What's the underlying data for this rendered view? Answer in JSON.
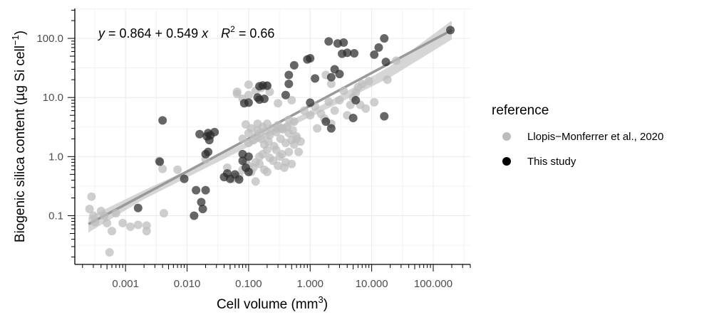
{
  "chart_data": {
    "type": "scatter",
    "x_scale": "log10",
    "y_scale": "log10",
    "xlabel": {
      "base": "Cell volume (mm",
      "sup": "3",
      "close": ")"
    },
    "ylabel": {
      "base": "Biogenic silica content (µg Si cell",
      "sup": "−1",
      "close": ")"
    },
    "xlim": [
      0.00015,
      400
    ],
    "ylim": [
      0.015,
      320
    ],
    "x_ticks": [
      0.001,
      0.01,
      0.1,
      1,
      10,
      100
    ],
    "x_tick_labels": [
      "0.001",
      "0.010",
      "0.100",
      "1.000",
      "10.000",
      "100.000"
    ],
    "y_ticks": [
      0.1,
      1,
      10,
      100
    ],
    "y_tick_labels": [
      "0.1",
      "1.0",
      "10.0",
      "100.0"
    ],
    "grid": true,
    "minor_ticks": true,
    "annotation": {
      "eq_y": "y",
      "eq_mid": " = 0.864 + 0.549 ",
      "eq_x": "x",
      "r_label": "R",
      "r_sup": "2",
      "r_value": " = 0.66"
    },
    "fit": {
      "x_range": [
        0.00025,
        200
      ],
      "line_color": "#999999",
      "band_color": "#c8c8c8",
      "points_low": [
        [
          0.00025,
          0.072
        ],
        [
          200,
          138
        ]
      ],
      "band_upper": [
        [
          0.00025,
          0.094
        ],
        [
          0.002,
          0.27
        ],
        [
          0.02,
          0.82
        ],
        [
          0.2,
          2.6
        ],
        [
          2,
          8.5
        ],
        [
          20,
          34
        ],
        [
          200,
          200
        ]
      ],
      "band_lower": [
        [
          0.00025,
          0.052
        ],
        [
          0.002,
          0.19
        ],
        [
          0.02,
          0.64
        ],
        [
          0.2,
          2.1
        ],
        [
          2,
          6.6
        ],
        [
          20,
          22
        ],
        [
          200,
          96
        ]
      ]
    },
    "legend": {
      "title": "reference",
      "position": "right",
      "entries": [
        "Llopis−Monferrer et al., 2020",
        "This study"
      ]
    },
    "series": [
      {
        "name": "Llopis−Monferrer et al., 2020",
        "color": "#bdbdbd",
        "points": [
          [
            0.00026,
            0.13
          ],
          [
            0.00028,
            0.21
          ],
          [
            0.0003,
            0.1
          ],
          [
            0.00032,
            0.078
          ],
          [
            0.0004,
            0.12
          ],
          [
            0.00045,
            0.1
          ],
          [
            0.0005,
            0.075
          ],
          [
            0.00055,
            0.024
          ],
          [
            0.0006,
            0.055
          ],
          [
            0.0007,
            0.11
          ],
          [
            0.0009,
            0.075
          ],
          [
            0.0012,
            0.065
          ],
          [
            0.0016,
            0.07
          ],
          [
            0.0022,
            0.055
          ],
          [
            0.0022,
            0.068
          ],
          [
            0.0035,
            0.85
          ],
          [
            0.004,
            0.62
          ],
          [
            0.0042,
            0.11
          ],
          [
            0.007,
            0.6
          ],
          [
            0.02,
            0.9
          ],
          [
            0.045,
            0.65
          ],
          [
            0.055,
            0.42
          ],
          [
            0.06,
            0.45
          ],
          [
            0.07,
            0.46
          ],
          [
            0.08,
            0.6
          ],
          [
            0.09,
            0.8
          ],
          [
            0.1,
            0.7
          ],
          [
            0.11,
            0.55
          ],
          [
            0.12,
            0.65
          ],
          [
            0.13,
            0.38
          ],
          [
            0.13,
            0.8
          ],
          [
            0.15,
            0.75
          ],
          [
            0.15,
            1.0
          ],
          [
            0.17,
            1.1
          ],
          [
            0.18,
            0.6
          ],
          [
            0.2,
            0.55
          ],
          [
            0.22,
            0.95
          ],
          [
            0.25,
            0.85
          ],
          [
            0.28,
            1.3
          ],
          [
            0.3,
            0.7
          ],
          [
            0.32,
            1.0
          ],
          [
            0.35,
            1.1
          ],
          [
            0.38,
            0.65
          ],
          [
            0.4,
            0.8
          ],
          [
            0.45,
            1.2
          ],
          [
            0.5,
            0.75
          ],
          [
            0.55,
            1.6
          ],
          [
            0.6,
            2.0
          ],
          [
            0.65,
            1.2
          ],
          [
            0.7,
            1.8
          ],
          [
            0.08,
            2.0
          ],
          [
            0.09,
            3.5
          ],
          [
            0.1,
            1.7
          ],
          [
            0.1,
            2.5
          ],
          [
            0.11,
            3.0
          ],
          [
            0.12,
            1.9
          ],
          [
            0.13,
            2.2
          ],
          [
            0.14,
            3.6
          ],
          [
            0.14,
            2.8
          ],
          [
            0.15,
            2.5
          ],
          [
            0.16,
            2.0
          ],
          [
            0.17,
            3.2
          ],
          [
            0.18,
            1.6
          ],
          [
            0.19,
            2.7
          ],
          [
            0.2,
            3.6
          ],
          [
            0.21,
            1.8
          ],
          [
            0.22,
            2.3
          ],
          [
            0.24,
            3.0
          ],
          [
            0.26,
            1.5
          ],
          [
            0.28,
            2.6
          ],
          [
            0.3,
            3.4
          ],
          [
            0.33,
            2.0
          ],
          [
            0.36,
            2.9
          ],
          [
            0.4,
            1.7
          ],
          [
            0.42,
            3.2
          ],
          [
            0.45,
            2.5
          ],
          [
            0.5,
            1.9
          ],
          [
            0.52,
            2.8
          ],
          [
            0.55,
            3.9
          ],
          [
            0.6,
            2.2
          ],
          [
            0.065,
            11.5
          ],
          [
            0.065,
            12.5
          ],
          [
            0.08,
            9.5
          ],
          [
            0.1,
            11.0
          ],
          [
            0.1,
            16.5
          ],
          [
            0.13,
            13.0
          ],
          [
            0.16,
            14.5
          ],
          [
            0.2,
            16.0
          ],
          [
            0.22,
            12.5
          ],
          [
            0.3,
            8.0
          ],
          [
            0.35,
            3.0
          ],
          [
            0.45,
            4.2
          ],
          [
            0.5,
            9.0
          ],
          [
            0.8,
            6.0
          ],
          [
            1.0,
            5.0
          ],
          [
            1.2,
            7.0
          ],
          [
            1.5,
            5.3
          ],
          [
            1.7,
            4.4
          ],
          [
            1.8,
            24.0
          ],
          [
            2.0,
            8.5
          ],
          [
            2.2,
            17.0
          ],
          [
            2.5,
            6.0
          ],
          [
            3.0,
            9.0
          ],
          [
            3.5,
            13.0
          ],
          [
            4.0,
            5.0
          ],
          [
            4.5,
            7.5
          ],
          [
            5.0,
            10.0
          ],
          [
            5.5,
            12.0
          ],
          [
            6.0,
            15.0
          ],
          [
            6.5,
            7.5
          ],
          [
            7.0,
            17.0
          ],
          [
            8.0,
            6.5
          ],
          [
            9.0,
            19.0
          ],
          [
            11.0,
            8.3
          ],
          [
            18.0,
            20.0
          ],
          [
            25.0,
            42.0
          ],
          [
            2.2,
            3.6
          ],
          [
            1.3,
            3.0
          ],
          [
            0.3,
            3.0
          ],
          [
            0.2,
            1.3
          ]
        ]
      },
      {
        "name": "This study",
        "color": "#2b2b2b",
        "points": [
          [
            0.0016,
            0.135
          ],
          [
            0.0036,
            0.82
          ],
          [
            0.004,
            4.1
          ],
          [
            0.009,
            0.42
          ],
          [
            0.013,
            0.1
          ],
          [
            0.014,
            0.27
          ],
          [
            0.016,
            2.4
          ],
          [
            0.017,
            0.17
          ],
          [
            0.018,
            0.13
          ],
          [
            0.02,
            0.27
          ],
          [
            0.02,
            1.1
          ],
          [
            0.021,
            2.2
          ],
          [
            0.022,
            1.2
          ],
          [
            0.022,
            2.5
          ],
          [
            0.023,
            1.9
          ],
          [
            0.024,
            2.3
          ],
          [
            0.028,
            2.6
          ],
          [
            0.04,
            0.45
          ],
          [
            0.045,
            0.52
          ],
          [
            0.05,
            0.42
          ],
          [
            0.06,
            0.5
          ],
          [
            0.07,
            0.41
          ],
          [
            0.08,
            0.85
          ],
          [
            0.08,
            1.1
          ],
          [
            0.085,
            8.0
          ],
          [
            0.09,
            0.65
          ],
          [
            0.1,
            0.55
          ],
          [
            0.1,
            1.0
          ],
          [
            0.1,
            8.2
          ],
          [
            0.14,
            10.0
          ],
          [
            0.15,
            9.2
          ],
          [
            0.15,
            15.5
          ],
          [
            0.17,
            16.0
          ],
          [
            0.18,
            9.5
          ],
          [
            0.2,
            15.8
          ],
          [
            0.4,
            11.0
          ],
          [
            0.45,
            17.0
          ],
          [
            0.45,
            24.0
          ],
          [
            0.55,
            35.0
          ],
          [
            0.9,
            44.0
          ],
          [
            1.0,
            46.0
          ],
          [
            1.0,
            8.2
          ],
          [
            1.2,
            21.0
          ],
          [
            1.8,
            3.9
          ],
          [
            2.0,
            89.0
          ],
          [
            2.2,
            22.0
          ],
          [
            2.5,
            30.0
          ],
          [
            2.8,
            82.0
          ],
          [
            3.0,
            25.0
          ],
          [
            3.3,
            55.0
          ],
          [
            3.5,
            85.0
          ],
          [
            4.0,
            57.0
          ],
          [
            5.0,
            4.5
          ],
          [
            5.2,
            56.0
          ],
          [
            5.5,
            9.0
          ],
          [
            11.0,
            53.0
          ],
          [
            13.0,
            70.0
          ],
          [
            16.0,
            4.8
          ],
          [
            16.0,
            100.0
          ],
          [
            17.0,
            40.0
          ],
          [
            190.0,
            138.0
          ],
          [
            2.2,
            3.0
          ]
        ]
      }
    ]
  }
}
